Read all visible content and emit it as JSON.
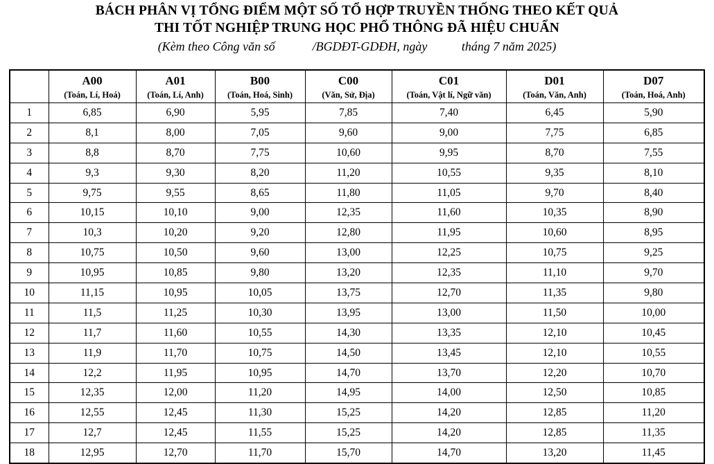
{
  "title": {
    "line1": "BÁCH PHÂN VỊ TỔNG ĐIỂM MỘT SỐ TỔ HỢP TRUYỀN THỐNG THEO KẾT QUẢ",
    "line2": "THI TỐT NGHIỆP TRUNG HỌC PHỔ THÔNG ĐÃ HIỆU CHUẨN"
  },
  "subtitle": "(Kèm theo Công văn số            /BGDĐT-GDĐH, ngày           tháng 7 năm 2025)",
  "table": {
    "columns": [
      {
        "code": "A00",
        "subjects": "(Toán, Lí, Hoá)"
      },
      {
        "code": "A01",
        "subjects": "(Toán, Lí, Anh)"
      },
      {
        "code": "B00",
        "subjects": "(Toán, Hoá, Sinh)"
      },
      {
        "code": "C00",
        "subjects": "(Văn, Sử, Địa)"
      },
      {
        "code": "C01",
        "subjects": "(Toán, Vật lí, Ngữ văn)"
      },
      {
        "code": "D01",
        "subjects": "(Toán, Văn, Anh)"
      },
      {
        "code": "D07",
        "subjects": "(Toán, Hoá, Anh)"
      }
    ],
    "rows": [
      {
        "index": "1",
        "values": [
          "6,85",
          "6,90",
          "5,95",
          "7,85",
          "7,40",
          "6,45",
          "5,90"
        ]
      },
      {
        "index": "2",
        "values": [
          "8,1",
          "8,00",
          "7,05",
          "9,60",
          "9,00",
          "7,75",
          "6,85"
        ]
      },
      {
        "index": "3",
        "values": [
          "8,8",
          "8,70",
          "7,75",
          "10,60",
          "9,95",
          "8,70",
          "7,55"
        ]
      },
      {
        "index": "4",
        "values": [
          "9,3",
          "9,30",
          "8,20",
          "11,20",
          "10,55",
          "9,35",
          "8,10"
        ]
      },
      {
        "index": "5",
        "values": [
          "9,75",
          "9,55",
          "8,65",
          "11,80",
          "11,05",
          "9,70",
          "8,40"
        ]
      },
      {
        "index": "6",
        "values": [
          "10,15",
          "10,10",
          "9,00",
          "12,35",
          "11,60",
          "10,35",
          "8,90"
        ]
      },
      {
        "index": "7",
        "values": [
          "10,3",
          "10,20",
          "9,20",
          "12,80",
          "11,95",
          "10,60",
          "8,95"
        ]
      },
      {
        "index": "8",
        "values": [
          "10,75",
          "10,50",
          "9,60",
          "13,00",
          "12,25",
          "10,75",
          "9,25"
        ]
      },
      {
        "index": "9",
        "values": [
          "10,95",
          "10,85",
          "9,80",
          "13,20",
          "12,35",
          "11,10",
          "9,70"
        ]
      },
      {
        "index": "10",
        "values": [
          "11,15",
          "10,95",
          "10,05",
          "13,75",
          "12,70",
          "11,35",
          "9,80"
        ]
      },
      {
        "index": "11",
        "values": [
          "11,5",
          "11,25",
          "10,30",
          "13,95",
          "13,00",
          "11,50",
          "10,00"
        ]
      },
      {
        "index": "12",
        "values": [
          "11,7",
          "11,60",
          "10,55",
          "14,30",
          "13,35",
          "12,10",
          "10,45"
        ]
      },
      {
        "index": "13",
        "values": [
          "11,9",
          "11,70",
          "10,75",
          "14,50",
          "13,45",
          "12,10",
          "10,55"
        ]
      },
      {
        "index": "14",
        "values": [
          "12,2",
          "11,95",
          "10,95",
          "14,70",
          "13,70",
          "12,20",
          "10,70"
        ]
      },
      {
        "index": "15",
        "values": [
          "12,35",
          "12,00",
          "11,20",
          "14,95",
          "14,00",
          "12,50",
          "10,85"
        ]
      },
      {
        "index": "16",
        "values": [
          "12,55",
          "12,45",
          "11,30",
          "15,25",
          "14,20",
          "12,85",
          "11,20"
        ]
      },
      {
        "index": "17",
        "values": [
          "12,7",
          "12,45",
          "11,55",
          "15,25",
          "14,20",
          "12,85",
          "11,35"
        ]
      },
      {
        "index": "18",
        "values": [
          "12,95",
          "12,70",
          "11,70",
          "15,70",
          "14,70",
          "13,20",
          "11,45"
        ]
      }
    ]
  }
}
